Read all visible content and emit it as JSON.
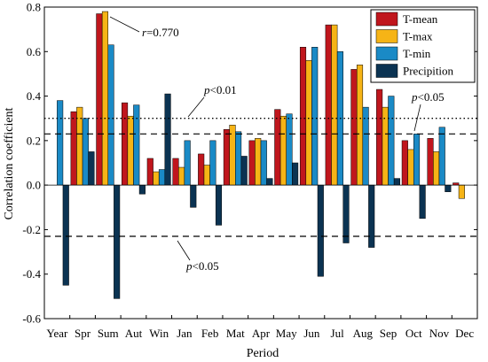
{
  "chart_data": {
    "type": "bar",
    "title": "",
    "xlabel": "Period",
    "ylabel": "Correlation coefficient",
    "ylim": [
      -0.6,
      0.8
    ],
    "yticks": [
      -0.6,
      -0.4,
      -0.2,
      0.0,
      0.2,
      0.4,
      0.6,
      0.8
    ],
    "ytick_labels": [
      "-0.6",
      "-0.4",
      "-0.2",
      "0.0",
      "0.2",
      "0.4",
      "0.6",
      "0.8"
    ],
    "categories": [
      "Year",
      "Spr",
      "Sum",
      "Aut",
      "Win",
      "Jan",
      "Feb",
      "Mat",
      "Apr",
      "May",
      "Jun",
      "Jul",
      "Aug",
      "Sep",
      "Oct",
      "Nov",
      "Dec"
    ],
    "legend_position": "top-right",
    "series": [
      {
        "name": "T-mean",
        "color": "#c0161d",
        "values": [
          null,
          0.33,
          0.77,
          0.37,
          0.12,
          0.12,
          0.14,
          0.25,
          0.2,
          0.34,
          0.62,
          0.72,
          0.52,
          0.43,
          0.2,
          0.21,
          0.01
        ]
      },
      {
        "name": "T-max",
        "color": "#f6b416",
        "values": [
          null,
          0.35,
          0.78,
          0.31,
          0.06,
          0.08,
          0.09,
          0.27,
          0.21,
          0.31,
          0.56,
          0.72,
          0.54,
          0.35,
          0.16,
          0.15,
          -0.06
        ]
      },
      {
        "name": "T-min",
        "color": "#1a8ac6",
        "values": [
          0.38,
          0.3,
          0.63,
          0.36,
          0.07,
          0.2,
          0.2,
          0.24,
          0.2,
          0.32,
          0.62,
          0.6,
          0.35,
          0.4,
          0.23,
          0.26,
          null
        ]
      },
      {
        "name": "Precipition",
        "color": "#0b3352",
        "values": [
          -0.45,
          0.15,
          -0.51,
          -0.04,
          0.41,
          -0.1,
          -0.18,
          0.13,
          0.03,
          0.1,
          -0.41,
          -0.26,
          -0.28,
          0.03,
          -0.15,
          -0.03,
          null
        ]
      }
    ],
    "reference_lines": [
      {
        "value": 0.3,
        "style": "dotted"
      },
      {
        "value": 0.23,
        "style": "dashed"
      },
      {
        "value": -0.23,
        "style": "dashed"
      }
    ],
    "annotations": {
      "r_label": "r=0.770",
      "p001_label": "p<0.01",
      "p005_upper_label": "p<0.05",
      "p005_lower_label": "p<0.05"
    }
  }
}
